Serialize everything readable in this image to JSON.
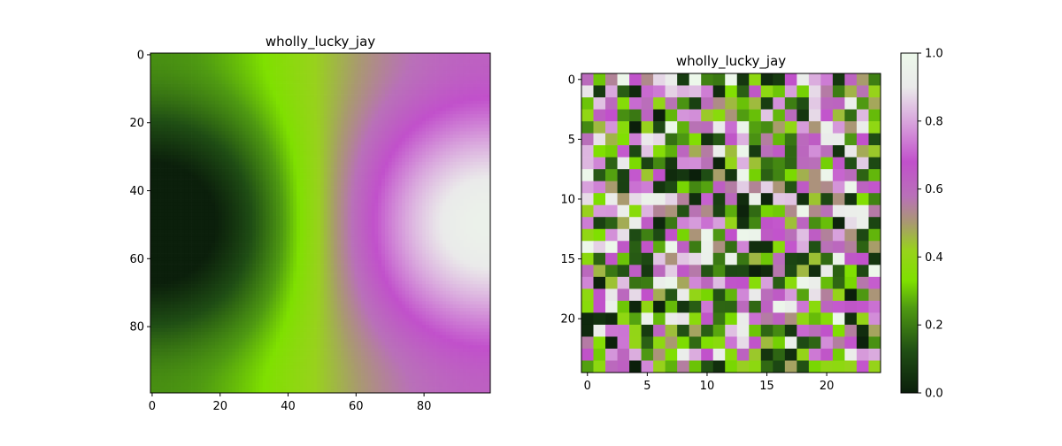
{
  "chart_data": [
    {
      "type": "heatmap",
      "title": "wholly_lucky_jay",
      "grid": false,
      "xlim": [
        0,
        99
      ],
      "ylim": [
        99,
        0
      ],
      "xticks": [
        0,
        20,
        40,
        60,
        80
      ],
      "yticks": [
        0,
        20,
        40,
        60,
        80
      ],
      "colormap": "PiYG_r",
      "resolution": 100,
      "field_description": "smooth 2-D field: dark minimum near (x=10, y=50), bright maximum near (x=90, y=50); values 0..1"
    },
    {
      "type": "heatmap",
      "title": "wholly_lucky_jay",
      "grid": false,
      "xlim": [
        0,
        24
      ],
      "ylim": [
        24,
        0
      ],
      "xticks": [
        0,
        5,
        10,
        15,
        20
      ],
      "yticks": [
        0,
        5,
        10,
        15,
        20
      ],
      "colormap": "PiYG_r",
      "values_note": "25x25 grid of uniform random values in [0, 1]",
      "seed": 7,
      "colorbar": {
        "min": 0.0,
        "max": 1.0,
        "ticks": [
          "0.0",
          "0.2",
          "0.4",
          "0.6",
          "0.8",
          "1.0"
        ]
      }
    }
  ],
  "colormap_stops": [
    {
      "v": 0.0,
      "color": "#0b1f0b"
    },
    {
      "v": 0.12,
      "color": "#1f4d14"
    },
    {
      "v": 0.25,
      "color": "#4f9a12"
    },
    {
      "v": 0.33,
      "color": "#7fe000"
    },
    {
      "v": 0.42,
      "color": "#98d21c"
    },
    {
      "v": 0.5,
      "color": "#a99970"
    },
    {
      "v": 0.58,
      "color": "#b970b9"
    },
    {
      "v": 0.68,
      "color": "#c150cb"
    },
    {
      "v": 0.8,
      "color": "#d9a6dd"
    },
    {
      "v": 0.9,
      "color": "#eaeaea"
    },
    {
      "v": 1.0,
      "color": "#ecf8ea"
    }
  ]
}
